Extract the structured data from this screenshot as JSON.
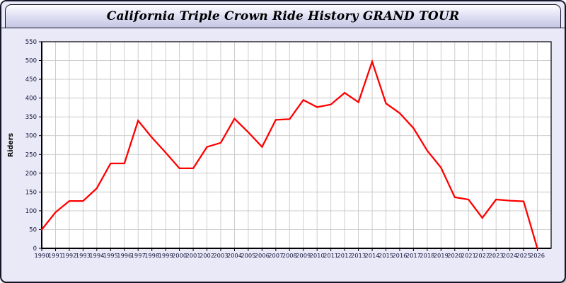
{
  "window": {
    "title": "California Triple Crown Ride History GRAND TOUR"
  },
  "colors": {
    "page_bg": "#e9e9f7",
    "border": "#15152a",
    "plot_bg": "#ffffff",
    "grid": "#c8c8c8",
    "axis": "#000000",
    "tick_label": "#14143c",
    "line": "#ff0000"
  },
  "chart_data": {
    "type": "line",
    "title": "California Triple Crown Ride History GRAND TOUR",
    "xlabel": "",
    "ylabel": "Riders",
    "x": [
      "1990",
      "1991",
      "1992",
      "1993",
      "1994",
      "1995",
      "1996",
      "1997",
      "1998",
      "1999",
      "2000",
      "2001",
      "2002",
      "2003",
      "2004",
      "2005",
      "2006",
      "2007",
      "2008",
      "2009",
      "2010",
      "2011",
      "2012",
      "2013",
      "2014",
      "2015",
      "2016",
      "2017",
      "2018",
      "2019",
      "2020",
      "2021",
      "2022",
      "2023",
      "2024",
      "2025",
      "2026"
    ],
    "series": [
      {
        "name": "Riders",
        "color": "#ff0000",
        "values": [
          50,
          96,
          126,
          126,
          160,
          226,
          226,
          340,
          295,
          255,
          213,
          213,
          270,
          281,
          345,
          309,
          270,
          342,
          344,
          395,
          376,
          383,
          414,
          389,
          497,
          386,
          360,
          320,
          260,
          215,
          136,
          130,
          81,
          130,
          127,
          125,
          0
        ]
      }
    ],
    "ylim": [
      0,
      550
    ],
    "ytick_step": 50,
    "grid": true,
    "legend": false,
    "x_axis_padding_right_years": 1
  }
}
